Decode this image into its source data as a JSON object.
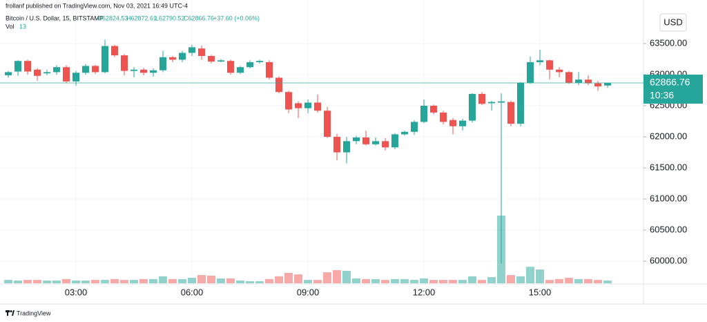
{
  "header": {
    "published": "frollanf published on TradingView.com, Nov 03, 2021 16:49 UTC-4"
  },
  "legend": {
    "symbol": "Bitcoin / U.S. Dollar, 15, BITSTAMP",
    "ohlc": [
      "O62824.53",
      "H62872.61",
      "L62790.52",
      "C62866.76"
    ],
    "change": "+37.60 (+0.06%)",
    "volume_label": "Vol"
  },
  "currency": "USD",
  "countdown": "10:36",
  "footer": "TradingView",
  "chart_data": {
    "type": "candlestick",
    "categories": [
      null,
      null,
      null,
      null,
      null,
      null,
      null,
      "03:00",
      null,
      null,
      null,
      null,
      null,
      null,
      null,
      null,
      null,
      null,
      null,
      "06:00",
      null,
      null,
      null,
      null,
      null,
      null,
      null,
      null,
      null,
      null,
      null,
      "09:00",
      null,
      null,
      null,
      null,
      null,
      null,
      null,
      null,
      null,
      null,
      null,
      "12:00",
      null,
      null,
      null,
      null,
      null,
      null,
      null,
      null,
      null,
      null,
      null,
      "15:00",
      null,
      null,
      null,
      null,
      null,
      null,
      null
    ],
    "open": [
      62990,
      63050,
      63220,
      63080,
      63020,
      63040,
      63120,
      62890,
      63030,
      63140,
      63040,
      63460,
      63310,
      63060,
      63080,
      63030,
      63070,
      63280,
      63240,
      63350,
      63420,
      63300,
      63210,
      63220,
      63030,
      63120,
      63200,
      63200,
      62950,
      62720,
      62540,
      62460,
      62550,
      62420,
      62000,
      61750,
      61930,
      61990,
      61880,
      61930,
      61830,
      62040,
      62080,
      62240,
      62500,
      62390,
      62270,
      62170,
      62260,
      62690,
      62540,
      62550,
      62560,
      62210,
      62870,
      63200,
      63230,
      63080,
      63040,
      62870,
      62920,
      62860,
      62824.53
    ],
    "high": [
      63060,
      63230,
      63240,
      63100,
      63080,
      63150,
      63150,
      63060,
      63170,
      63160,
      63560,
      63480,
      63330,
      63120,
      63110,
      63100,
      63380,
      63300,
      63380,
      63480,
      63470,
      63320,
      63250,
      63240,
      63140,
      63230,
      63240,
      63230,
      62970,
      62740,
      62570,
      62600,
      62680,
      62480,
      62050,
      62000,
      62020,
      62100,
      61990,
      61980,
      62060,
      62100,
      62270,
      62600,
      62520,
      62420,
      62300,
      62290,
      62700,
      62720,
      62580,
      62700,
      62580,
      62880,
      63290,
      63400,
      63240,
      63120,
      63060,
      63040,
      62990,
      62900,
      62872.61
    ],
    "low": [
      62950,
      62980,
      63000,
      62900,
      62990,
      63000,
      62860,
      62820,
      63000,
      63010,
      63020,
      63280,
      62990,
      62960,
      62990,
      62970,
      63040,
      63200,
      63200,
      63300,
      63240,
      63180,
      63200,
      63000,
      63010,
      63100,
      63180,
      62920,
      62700,
      62380,
      62300,
      62380,
      62390,
      61980,
      61620,
      61570,
      61880,
      61860,
      61860,
      61780,
      61800,
      62020,
      62030,
      62220,
      62360,
      62200,
      62040,
      62100,
      62230,
      62510,
      62420,
      59960,
      62170,
      62170,
      62850,
      63150,
      62920,
      62960,
      62850,
      62830,
      62830,
      62740,
      62790.52
    ],
    "close": [
      63040,
      63220,
      63050,
      62980,
      63040,
      63120,
      62890,
      63030,
      63140,
      63040,
      63460,
      63310,
      63060,
      63080,
      63030,
      63070,
      63280,
      63240,
      63350,
      63440,
      63300,
      63210,
      63230,
      63030,
      63120,
      63200,
      63220,
      62950,
      62720,
      62440,
      62460,
      62550,
      62420,
      62000,
      61750,
      61930,
      61990,
      61880,
      61930,
      61830,
      62040,
      62080,
      62240,
      62500,
      62390,
      62240,
      62170,
      62260,
      62690,
      62530,
      62560,
      62570,
      62210,
      62870,
      63200,
      63230,
      63080,
      63040,
      62870,
      62920,
      62860,
      62810,
      62866.76
    ],
    "volume": [
      16,
      13,
      16,
      16,
      13,
      13,
      20,
      13,
      13,
      16,
      16,
      20,
      16,
      16,
      20,
      20,
      33,
      20,
      20,
      26,
      39,
      36,
      23,
      23,
      13,
      10,
      10,
      20,
      33,
      49,
      42,
      16,
      16,
      52,
      62,
      59,
      23,
      20,
      20,
      16,
      20,
      20,
      16,
      23,
      16,
      16,
      16,
      16,
      33,
      16,
      29,
      320,
      39,
      33,
      78,
      65,
      16,
      20,
      26,
      20,
      20,
      16,
      13
    ],
    "ylim": [
      59650,
      64000
    ],
    "yticks": [
      {
        "value": 60000,
        "label": "60000.00"
      },
      {
        "value": 60500,
        "label": "60500.00"
      },
      {
        "value": 61000,
        "label": "61000.00"
      },
      {
        "value": 61500,
        "label": "61500.00"
      },
      {
        "value": 62000,
        "label": "62000.00"
      },
      {
        "value": 62500,
        "label": "62500.00"
      },
      {
        "value": 63000,
        "label": "63000.00"
      },
      {
        "value": 63500,
        "label": "63500.00"
      }
    ],
    "grid": true,
    "up_color": "#26a69a",
    "down_color": "#ef5350"
  }
}
